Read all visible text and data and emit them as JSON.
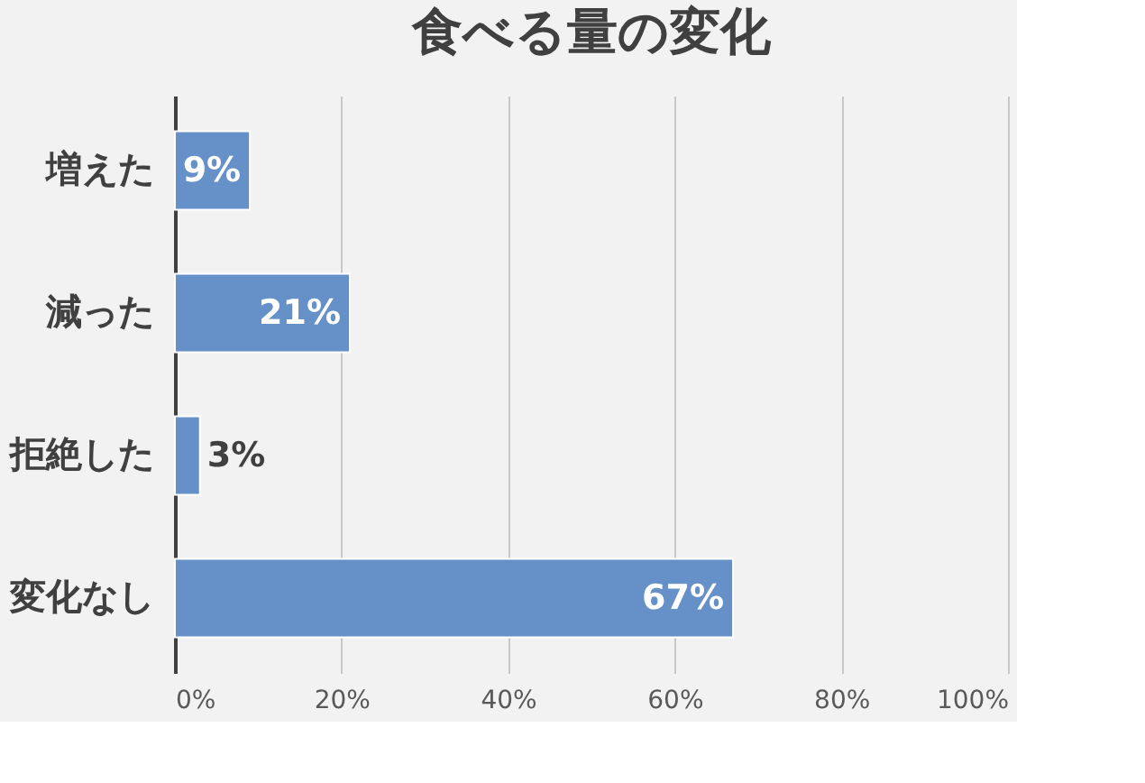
{
  "chart_data": {
    "type": "bar",
    "orientation": "horizontal",
    "title": "食べる量の変化",
    "categories": [
      "増えた",
      "減った",
      "拒絶した",
      "変化なし"
    ],
    "values": [
      9,
      21,
      3,
      67
    ],
    "value_labels": [
      "9%",
      "21%",
      "3%",
      "67%"
    ],
    "color": "#6590c8",
    "xlim": [
      0,
      100
    ],
    "xticks": [
      {
        "value": 0,
        "label": "0%"
      },
      {
        "value": 20,
        "label": "20%"
      },
      {
        "value": 40,
        "label": "40%"
      },
      {
        "value": 60,
        "label": "60%"
      },
      {
        "value": 80,
        "label": "80%"
      },
      {
        "value": 100,
        "label": "100%"
      }
    ],
    "grid": "x"
  }
}
